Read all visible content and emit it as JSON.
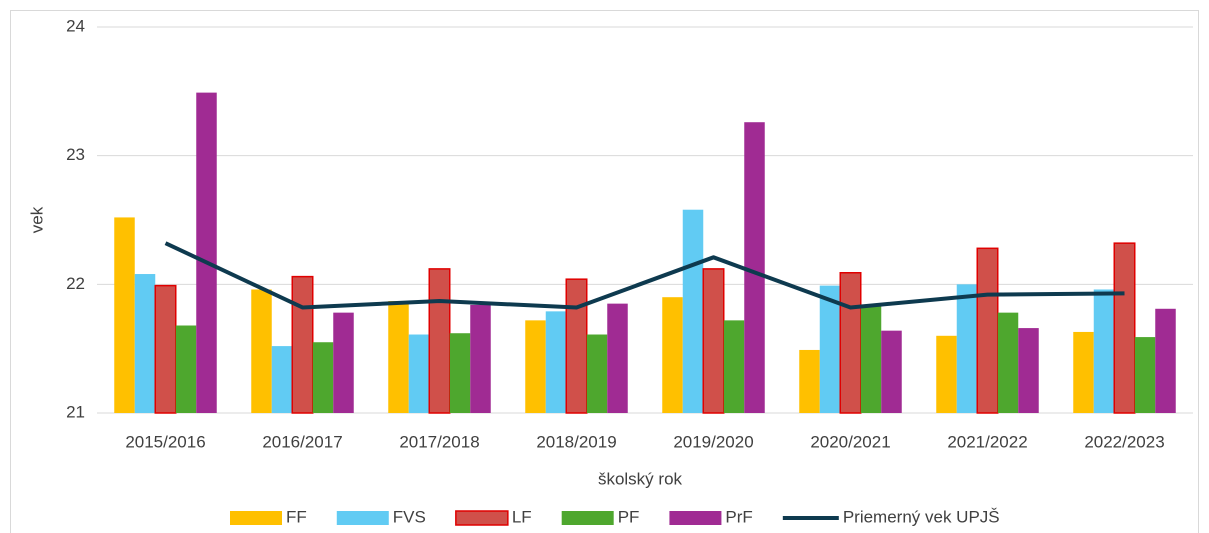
{
  "chart_data": {
    "type": "bar",
    "x_label": "školský rok",
    "y_label": "vek",
    "categories": [
      "2015/2016",
      "2016/2017",
      "2017/2018",
      "2018/2019",
      "2019/2020",
      "2020/2021",
      "2021/2022",
      "2022/2023"
    ],
    "series": [
      {
        "name": "FF",
        "color": "#ffc000",
        "values": [
          22.52,
          21.96,
          21.87,
          21.72,
          21.9,
          21.49,
          21.6,
          21.63
        ]
      },
      {
        "name": "FVS",
        "color": "#61cbf3",
        "values": [
          22.08,
          21.52,
          21.61,
          21.79,
          22.58,
          21.99,
          22.0,
          21.96
        ]
      },
      {
        "name": "LF",
        "color": "#d0504a",
        "edgecolor": "#e00000",
        "values": [
          21.99,
          22.06,
          22.12,
          22.04,
          22.12,
          22.09,
          22.28,
          22.32
        ]
      },
      {
        "name": "PF",
        "color": "#4ea72e",
        "values": [
          21.68,
          21.55,
          21.62,
          21.61,
          21.72,
          21.84,
          21.78,
          21.59
        ]
      },
      {
        "name": "PrF",
        "color": "#a02b93",
        "values": [
          23.49,
          21.78,
          21.84,
          21.85,
          23.26,
          21.64,
          21.66,
          21.81
        ]
      },
      {
        "name": "Priemerný vek UPJŠ",
        "type": "line",
        "color": "#0e3a4f",
        "values": [
          22.32,
          21.82,
          21.87,
          21.82,
          22.21,
          21.82,
          21.92,
          21.93
        ]
      }
    ],
    "ylim": [
      21,
      24
    ],
    "yticks": [
      21,
      22,
      23,
      24
    ],
    "grid": true,
    "legend": "bottom"
  }
}
